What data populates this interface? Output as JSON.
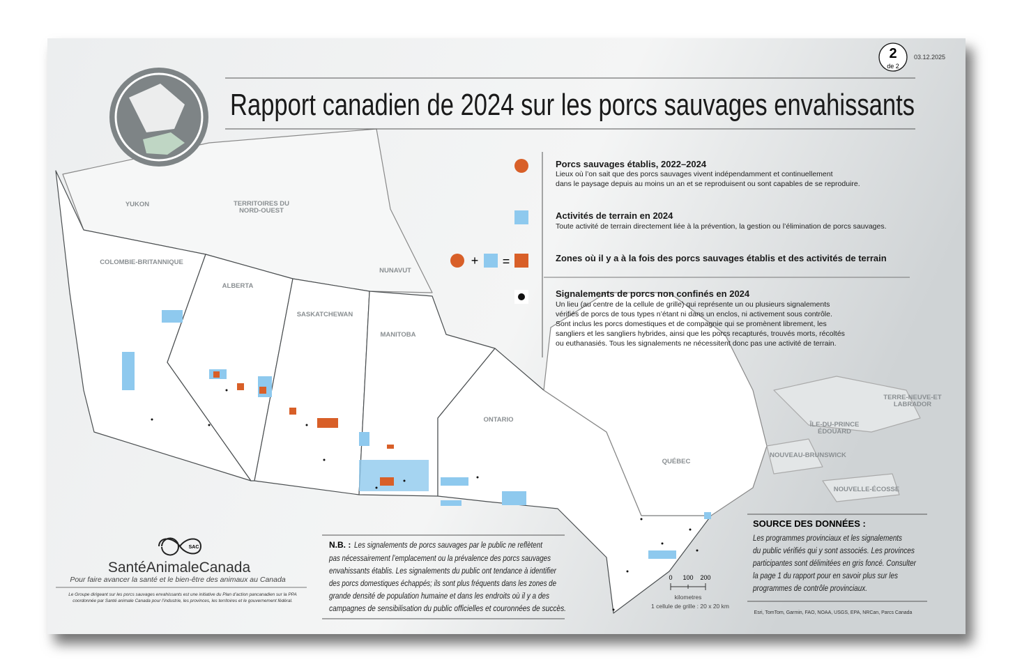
{
  "header": {
    "page_number": "2",
    "page_of": "de 2",
    "date": "03.12.2025",
    "title": "Rapport canadien de 2024 sur les porcs sauvages envahissants"
  },
  "legend": [
    {
      "title": "Porcs sauvages établis, 2022–2024",
      "description": [
        "Lieux où l’on sait que des porcs sauvages vivent indépendamment et continuellement",
        "dans le paysage depuis au moins un an et se reproduisent ou sont capables de se reproduire."
      ]
    },
    {
      "title": "Activités de terrain en 2024",
      "description": [
        "Toute activité de terrain directement liée à la prévention, la gestion ou l’élimination de porcs sauvages."
      ]
    },
    {
      "title": "Zones où il y a à la fois des porcs sauvages établis et des activités de terrain",
      "description": []
    },
    {
      "title": "Signalements de porcs non confinés en 2024",
      "description": [
        "Un lieu (au centre de la cellule de grille) qui représente un ou plusieurs signalements",
        "vérifiés de porcs de tous types n’étant ni dans un enclos, ni activement sous contrôle.",
        "Sont inclus les porcs domestiques et de compagnie qui se promènent librement, les",
        "sangliers et les sangliers hybrides, ainsi que les porcs recapturés, trouvés morts, récoltés",
        "ou euthanasiés. Tous les signalements ne nécessitent donc pas une activité de terrain."
      ]
    }
  ],
  "regions": [
    [
      "YUKON"
    ],
    [
      "TERRITOIRES DU",
      "NORD-OUEST"
    ],
    [
      "COLOMBIE-BRITANNIQUE"
    ],
    [
      "ALBERTA"
    ],
    [
      "SASKATCHEWAN"
    ],
    [
      "NUNAVUT"
    ],
    [
      "MANITOBA"
    ],
    [
      "ONTARIO"
    ],
    [
      "QUÉBEC"
    ],
    [
      "TERRE-NEUVE-ET",
      "LABRADOR"
    ],
    [
      "ÎLE-DU-PRINCE",
      "ÉDOUARD"
    ],
    [
      "NOUVEAU-BRUNSWICK"
    ],
    [
      "NOUVELLE-ÉCOSSE"
    ]
  ],
  "note": {
    "label": "N.B. :",
    "lines": [
      "Les signalements de porcs sauvages par le public ne reflètent",
      "pas nécessairement l’emplacement ou la prévalence des porcs sauvages",
      "envahissants établis. Les signalements du public ont tendance à identifier",
      "des porcs domestiques échappés; ils sont plus fréquents dans les zones de",
      "grande densité de population humaine et dans les endroits où il y a des",
      "campagnes de sensibilisation du public officielles et couronnées de succès."
    ]
  },
  "source": {
    "title": "SOURCE DES DONNÉES :",
    "lines": [
      "Les programmes provinciaux et les signalements",
      "du public vérifiés qui y sont associés. Les provinces",
      "participantes sont délimitées en gris foncé. Consulter",
      "la page 1 du rapport pour en savoir plus sur les",
      "programmes de contrôle provinciaux."
    ]
  },
  "logo": {
    "badge": "SAC",
    "name": "SantéAnimaleCanada",
    "tagline": "Pour faire avancer la santé et le bien-être des animaux au Canada",
    "footnote": [
      "Le Groupe dirigeant sur les porcs sauvages envahissants est une initiative du Plan d’action pancanadien sur la PPA",
      "coordonnée par Santé animale Canada pour l’industrie, les provinces, les territoires et le gouvernement fédéral."
    ]
  },
  "scale": {
    "ticks": [
      "0",
      "100",
      "200"
    ],
    "unit": "kilometres",
    "cell": "1 cellule de grille : 20 x 20 km"
  },
  "attribution": "Esri, TomTom, Garmin, FAO, NOAA, USGS, EPA, NRCan, Parcs Canada"
}
